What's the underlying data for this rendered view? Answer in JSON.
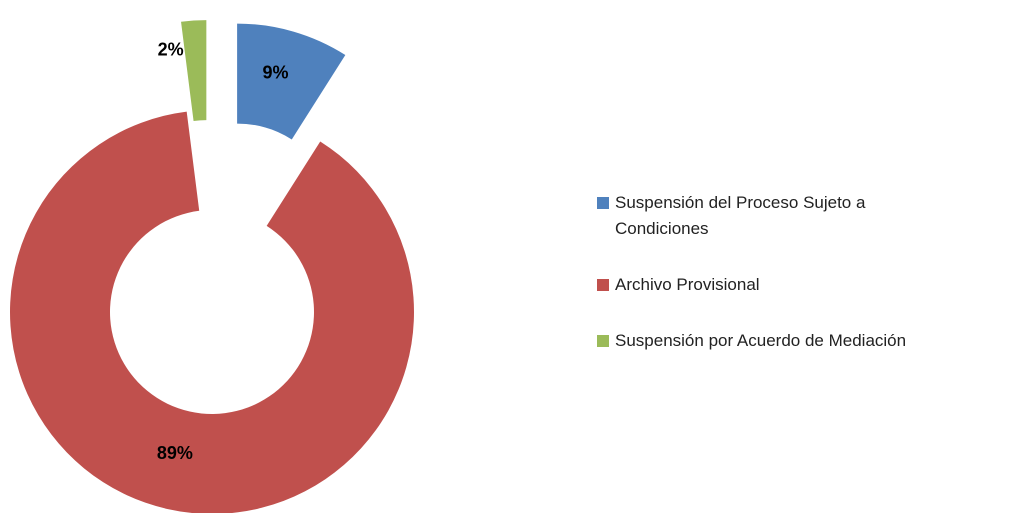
{
  "chart_data": {
    "type": "donut",
    "categories": [
      "Suspensión del Proceso Sujeto a Condiciones",
      "Archivo Provisional",
      "Suspensión por Acuerdo de Mediación"
    ],
    "values": [
      9,
      89,
      2
    ],
    "value_labels": [
      "9%",
      "89%",
      "2%"
    ],
    "colors": [
      "#4f81bd",
      "#c0504d",
      "#9bbb59"
    ],
    "legend": "right"
  }
}
